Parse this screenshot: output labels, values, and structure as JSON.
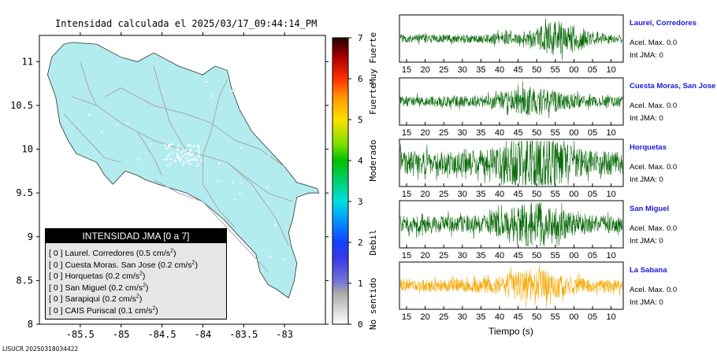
{
  "map": {
    "title": "Intensidad calculada el 2025/03/17_09:44:14_PM",
    "x_ticks": [
      "-85.5",
      "-85",
      "-84.5",
      "-84",
      "-83.5",
      "-83"
    ],
    "y_ticks": [
      "11",
      "10.5",
      "10",
      "9.5",
      "9",
      "8.5",
      "8"
    ],
    "xlim": [
      -86,
      -82.5
    ],
    "ylim": [
      8,
      11.3
    ],
    "land_color": "#b3ecef",
    "road_color": "#a8a8a8"
  },
  "colorbar": {
    "ticks": [
      "0",
      "1",
      "2",
      "3",
      "4",
      "5",
      "6",
      "7"
    ],
    "range": [
      0,
      7
    ],
    "labels": [
      "No sentido",
      "Debil",
      "Moderado",
      "Fuerte",
      "Muy Fuerte"
    ]
  },
  "legend": {
    "title": "INTENSIDAD JMA [0 a 7]",
    "unit": "cm/s",
    "unit_exp": "2",
    "rows": [
      {
        "int": "[ 0 ]",
        "station": "Laurel. Corredores",
        "value": "(0.5"
      },
      {
        "int": "[ 0 ]",
        "station": "Cuesta Moras. San Jose",
        "value": "(0.2"
      },
      {
        "int": "[ 0 ]",
        "station": "Horquetas",
        "value": "(0.2"
      },
      {
        "int": "[ 0 ]",
        "station": "San Miguel",
        "value": "(0.2"
      },
      {
        "int": "[ 0 ]",
        "station": "Sarapiqui",
        "value": "(0.2"
      },
      {
        "int": "[ 0 ]",
        "station": "CAIS Puriscal",
        "value": "(0.1"
      }
    ]
  },
  "waveforms": {
    "x_ticks": [
      "15",
      "20",
      "25",
      "30",
      "35",
      "40",
      "45",
      "50",
      "55",
      "00",
      "05",
      "10"
    ],
    "xlabel": "Tiempo (s)",
    "stations": [
      {
        "name": "Laurel, Corredores",
        "acel": "Acel. Max. 0.0",
        "int": "Int JMA: 0",
        "color": "#0b6b0b",
        "amplitude": 0.2,
        "burst": 0.85
      },
      {
        "name": "Cuesta Moras, San Jose",
        "acel": "Acel. Max. 0.0",
        "int": "Int JMA: 0",
        "color": "#0b6b0b",
        "amplitude": 0.25,
        "burst": 0.5
      },
      {
        "name": "Horquetas",
        "acel": "Acel. Max. 0.0",
        "int": "Int JMA: 0",
        "color": "#0b6b0b",
        "amplitude": 0.55,
        "burst": 0.3
      },
      {
        "name": "San Miguel",
        "acel": "Acel. Max. 0.0",
        "int": "Int JMA: 0",
        "color": "#0b6b0b",
        "amplitude": 0.4,
        "burst": 0.4
      },
      {
        "name": "La Sabana",
        "acel": "Acel. Max. 0.0",
        "int": "Int JMA: 0",
        "color": "#f5a800",
        "amplitude": 0.3,
        "burst": 0.45
      }
    ]
  },
  "footer": "LISUCR 20250318034422"
}
